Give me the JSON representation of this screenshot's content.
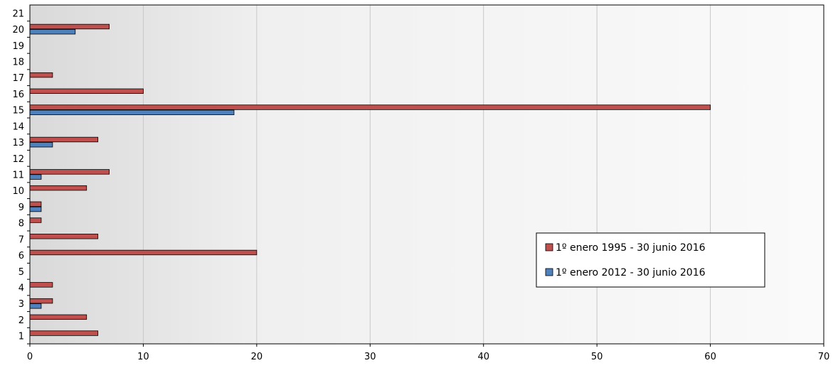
{
  "chart_data": {
    "type": "bar",
    "orientation": "horizontal",
    "categories": [
      "1",
      "2",
      "3",
      "4",
      "5",
      "6",
      "7",
      "8",
      "9",
      "10",
      "11",
      "12",
      "13",
      "14",
      "15",
      "16",
      "17",
      "18",
      "19",
      "20",
      "21"
    ],
    "series": [
      {
        "name": "1º enero 1995 - 30 junio 2016",
        "color": "#c0504d",
        "values": [
          6,
          5,
          2,
          2,
          0,
          20,
          6,
          1,
          1,
          5,
          7,
          0,
          6,
          0,
          60,
          10,
          2,
          0,
          0,
          7,
          0
        ]
      },
      {
        "name": "1º enero 2012 - 30 junio 2016",
        "color": "#4f81bd",
        "values": [
          0,
          0,
          1,
          0,
          0,
          0,
          0,
          0,
          1,
          0,
          1,
          0,
          2,
          0,
          18,
          0,
          0,
          0,
          0,
          4,
          0
        ]
      }
    ],
    "xlim": [
      0,
      70
    ],
    "x_ticks": [
      "0",
      "10",
      "20",
      "30",
      "40",
      "50",
      "60",
      "70"
    ],
    "grid": "vertical",
    "legend_position": "lower-right"
  }
}
